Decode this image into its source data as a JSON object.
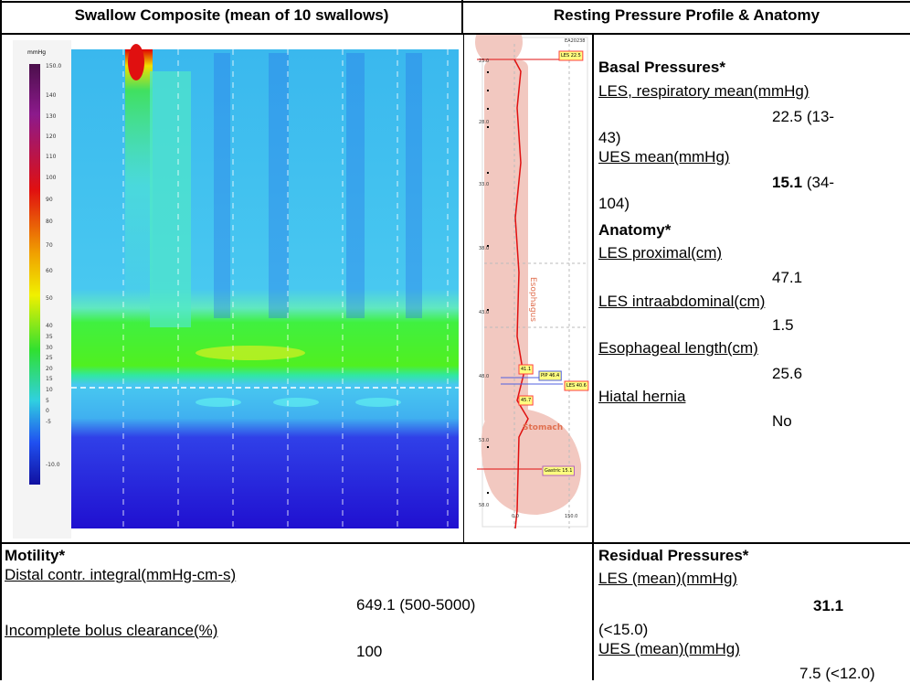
{
  "left_panel": {
    "title": "Swallow Composite (mean of 10 swallows)",
    "colorbar": {
      "unit": "mmHg",
      "labels": [
        "150.0",
        "140",
        "130",
        "120",
        "110",
        "100",
        "90",
        "80",
        "70",
        "60",
        "50",
        "40",
        "35",
        "30",
        "25",
        "20",
        "15",
        "10",
        "5",
        "0",
        "-5",
        "-10.0"
      ]
    }
  },
  "right_panel": {
    "title": "Resting Pressure Profile & Anatomy",
    "anatomy_plot": {
      "id": "EA20238",
      "depths": [
        "23.0",
        "28.0",
        "33.0",
        "38.0",
        "43.0",
        "48.0",
        "53.0",
        "58.0"
      ],
      "esophagus": "Esophagus",
      "stomach": "Stomach",
      "markers": [
        "LES 22.5",
        "41.1",
        "PIP 46.4",
        "LES 40.6",
        "45.7",
        "Gastric 15.1"
      ],
      "x_axis": [
        "0.0",
        "150.0"
      ]
    },
    "basal_pressures": {
      "heading": "Basal Pressures*",
      "items": [
        {
          "label": "LES, respiratory mean(mmHg)",
          "value": "22.5",
          "range": "(13-43)"
        },
        {
          "label": "UES mean(mmHg)",
          "value": "15.1",
          "range": "(34-104)"
        }
      ]
    },
    "anatomy": {
      "heading": "Anatomy*",
      "items": [
        {
          "label": "LES proximal(cm)",
          "value": "47.1"
        },
        {
          "label": "LES intraabdominal(cm)",
          "value": "1.5"
        },
        {
          "label": "Esophageal length(cm)",
          "value": "25.6"
        },
        {
          "label": "Hiatal hernia",
          "value": "No"
        }
      ]
    }
  },
  "motility": {
    "heading": "Motility*",
    "items": [
      {
        "label": "Distal contr. integral(mmHg-cm-s)",
        "value": "649.1 (500-5000)"
      },
      {
        "label": "Incomplete bolus clearance(%)",
        "value": "100"
      }
    ]
  },
  "residual_pressures": {
    "heading": "Residual Pressures*",
    "items": [
      {
        "label": "LES (mean)(mmHg)",
        "value": "31.1",
        "range": "(<15.0)"
      },
      {
        "label": "UES (mean)(mmHg)",
        "value": "7.5",
        "range": "(<12.0)"
      }
    ]
  }
}
